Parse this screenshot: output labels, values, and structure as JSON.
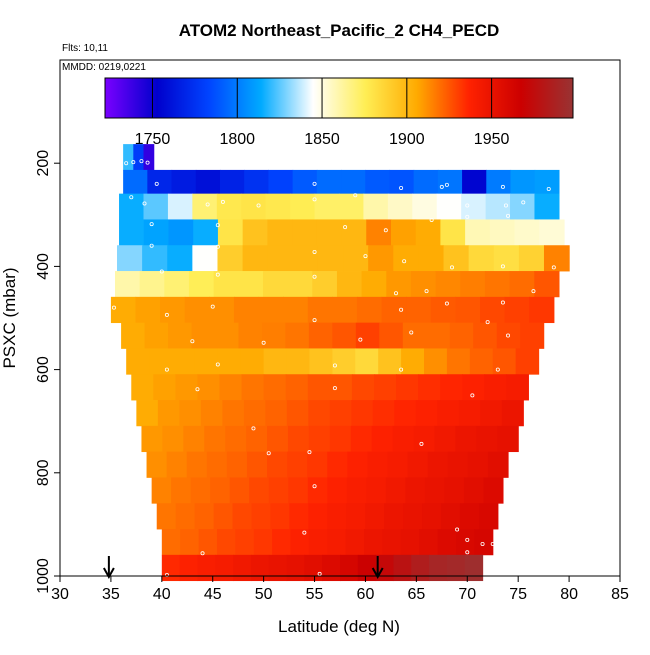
{
  "chart_data": {
    "type": "heatmap",
    "title": "ATOM2 Northeast_Pacific_2 CH4_PECD",
    "flights_label": "Flts: 10,11",
    "dates_label": "MMDD: 0219,0221",
    "xlabel": "Latitude (deg N)",
    "ylabel": "PSXC (mbar)",
    "xlim": [
      30,
      85
    ],
    "ylim": [
      1000,
      0
    ],
    "x_ticks": [
      "30",
      "35",
      "40",
      "45",
      "50",
      "55",
      "60",
      "65",
      "70",
      "75",
      "80",
      "85"
    ],
    "y_ticks": [
      "200",
      "400",
      "600",
      "800",
      "1000"
    ],
    "colorbar": {
      "range": [
        1722,
        1998
      ],
      "ticks": [
        "1750",
        "1800",
        "1850",
        "1900",
        "1950"
      ],
      "colors": [
        "#7a00ff",
        "#0000cc",
        "#0044ff",
        "#00aaff",
        "#ffffff",
        "#ffee55",
        "#ffaa00",
        "#ff2200",
        "#cc0000",
        "#993333"
      ]
    },
    "arrows_at_latitude": [
      34.8,
      61.2
    ],
    "layers": [
      {
        "p": 188,
        "lat_min": 36.2,
        "lat_max": 39.2,
        "ch4": [
          1820,
          1780,
          1740
        ]
      },
      {
        "p": 238,
        "lat_min": 36.2,
        "lat_max": 79.0,
        "ch4": [
          1795,
          1770,
          1765,
          1760,
          1768,
          1775,
          1782,
          1790,
          1795,
          1795,
          1790,
          1788,
          1795,
          1798,
          1755,
          1800,
          1808,
          1810
        ]
      },
      {
        "p": 284,
        "lat_min": 35.8,
        "lat_max": 79.0,
        "ch4": [
          1815,
          1825,
          1840,
          1870,
          1878,
          1880,
          1878,
          1876,
          1872,
          1872,
          1860,
          1855,
          1850,
          1845,
          1840,
          1836,
          1830,
          1815
        ]
      },
      {
        "p": 334,
        "lat_min": 35.8,
        "lat_max": 79.5,
        "ch4": [
          1815,
          1812,
          1808,
          1815,
          1880,
          1895,
          1900,
          1900,
          1900,
          1900,
          1915,
          1908,
          1905,
          1880,
          1858,
          1856,
          1854,
          1852
        ]
      },
      {
        "p": 384,
        "lat_min": 35.6,
        "lat_max": 80.0,
        "ch4": [
          1830,
          1820,
          1815,
          1845,
          1890,
          1900,
          1900,
          1900,
          1900,
          1900,
          1910,
          1905,
          1905,
          1895,
          1885,
          1882,
          1888,
          1915
        ]
      },
      {
        "p": 434,
        "lat_min": 35.4,
        "lat_max": 79.0,
        "ch4": [
          1860,
          1865,
          1870,
          1875,
          1880,
          1880,
          1885,
          1885,
          1890,
          1900,
          1905,
          1910,
          1912,
          1914,
          1916,
          1918,
          1920,
          1925
        ]
      },
      {
        "p": 484,
        "lat_min": 35.0,
        "lat_max": 78.5,
        "ch4": [
          1905,
          1908,
          1910,
          1912,
          1912,
          1915,
          1915,
          1915,
          1918,
          1918,
          1920,
          1922,
          1922,
          1924,
          1925,
          1928,
          1930,
          1932
        ]
      },
      {
        "p": 534,
        "lat_min": 36.0,
        "lat_max": 77.5,
        "ch4": [
          1905,
          1908,
          1910,
          1912,
          1912,
          1915,
          1916,
          1918,
          1922,
          1925,
          1930,
          1925,
          1920,
          1920,
          1922,
          1925,
          1928,
          1930
        ]
      },
      {
        "p": 584,
        "lat_min": 36.5,
        "lat_max": 77.0,
        "ch4": [
          1905,
          1905,
          1905,
          1905,
          1905,
          1905,
          1900,
          1900,
          1895,
          1890,
          1885,
          1895,
          1905,
          1912,
          1918,
          1922,
          1925,
          1930
        ]
      },
      {
        "p": 634,
        "lat_min": 37.0,
        "lat_max": 76.0,
        "ch4": [
          1905,
          1908,
          1910,
          1912,
          1915,
          1918,
          1920,
          1922,
          1925,
          1925,
          1928,
          1930,
          1932,
          1934,
          1936,
          1938,
          1940,
          1942
        ]
      },
      {
        "p": 684,
        "lat_min": 37.5,
        "lat_max": 75.5,
        "ch4": [
          1905,
          1910,
          1912,
          1915,
          1918,
          1920,
          1922,
          1925,
          1928,
          1930,
          1932,
          1934,
          1936,
          1938,
          1940,
          1942,
          1945,
          1948
        ]
      },
      {
        "p": 734,
        "lat_min": 38.0,
        "lat_max": 75.0,
        "ch4": [
          1910,
          1912,
          1915,
          1918,
          1920,
          1922,
          1925,
          1928,
          1930,
          1932,
          1935,
          1938,
          1940,
          1942,
          1945,
          1948,
          1950,
          1952
        ]
      },
      {
        "p": 784,
        "lat_min": 38.5,
        "lat_max": 74.0,
        "ch4": [
          1912,
          1915,
          1918,
          1920,
          1922,
          1925,
          1928,
          1930,
          1932,
          1935,
          1938,
          1940,
          1942,
          1945,
          1948,
          1950,
          1952,
          1955
        ]
      },
      {
        "p": 834,
        "lat_min": 39.0,
        "lat_max": 73.5,
        "ch4": [
          1915,
          1918,
          1920,
          1922,
          1925,
          1928,
          1930,
          1932,
          1935,
          1938,
          1940,
          1942,
          1945,
          1948,
          1950,
          1952,
          1955,
          1958
        ]
      },
      {
        "p": 884,
        "lat_min": 39.5,
        "lat_max": 73.0,
        "ch4": [
          1918,
          1920,
          1922,
          1925,
          1928,
          1930,
          1932,
          1935,
          1938,
          1940,
          1942,
          1945,
          1948,
          1950,
          1952,
          1955,
          1958,
          1960
        ]
      },
      {
        "p": 934,
        "lat_min": 40.0,
        "lat_max": 72.5,
        "ch4": [
          1920,
          1922,
          1925,
          1928,
          1930,
          1932,
          1935,
          1938,
          1940,
          1942,
          1945,
          1948,
          1950,
          1952,
          1955,
          1958,
          1960,
          1962
        ]
      },
      {
        "p": 984,
        "lat_min": 40.0,
        "lat_max": 71.5,
        "ch4": [
          1935,
          1938,
          1940,
          1942,
          1945,
          1948,
          1950,
          1952,
          1955,
          1958,
          1962,
          1968,
          1972,
          1978,
          1985,
          1990,
          1992,
          1995
        ]
      }
    ],
    "sample_points": [
      [
        36.5,
        200
      ],
      [
        37.2,
        198
      ],
      [
        38.0,
        196
      ],
      [
        38.6,
        199
      ],
      [
        39.5,
        240
      ],
      [
        55.0,
        240
      ],
      [
        63.5,
        248
      ],
      [
        67.5,
        246
      ],
      [
        68.0,
        242
      ],
      [
        73.5,
        246
      ],
      [
        78.0,
        250
      ],
      [
        37.0,
        266
      ],
      [
        38.3,
        278
      ],
      [
        44.5,
        280
      ],
      [
        46.0,
        275
      ],
      [
        49.5,
        282
      ],
      [
        55.0,
        270
      ],
      [
        59.0,
        262
      ],
      [
        70.0,
        282
      ],
      [
        73.8,
        282
      ],
      [
        75.5,
        276
      ],
      [
        39.0,
        318
      ],
      [
        45.5,
        320
      ],
      [
        58.0,
        324
      ],
      [
        62.0,
        330
      ],
      [
        66.5,
        310
      ],
      [
        70.0,
        304
      ],
      [
        74.0,
        302
      ],
      [
        39.0,
        360
      ],
      [
        45.5,
        362
      ],
      [
        55.0,
        372
      ],
      [
        60.0,
        380
      ],
      [
        63.8,
        390
      ],
      [
        68.5,
        402
      ],
      [
        73.5,
        400
      ],
      [
        78.5,
        402
      ],
      [
        40.0,
        410
      ],
      [
        45.5,
        416
      ],
      [
        55.0,
        420
      ],
      [
        63.0,
        452
      ],
      [
        66.0,
        448
      ],
      [
        76.5,
        448
      ],
      [
        35.3,
        480
      ],
      [
        40.5,
        494
      ],
      [
        45.0,
        478
      ],
      [
        55.0,
        504
      ],
      [
        63.5,
        484
      ],
      [
        68.0,
        472
      ],
      [
        72.0,
        508
      ],
      [
        73.5,
        470
      ],
      [
        43.0,
        545
      ],
      [
        50.0,
        548
      ],
      [
        59.5,
        542
      ],
      [
        64.5,
        528
      ],
      [
        74.0,
        534
      ],
      [
        40.5,
        600
      ],
      [
        45.5,
        590
      ],
      [
        57.0,
        592
      ],
      [
        63.5,
        600
      ],
      [
        73.0,
        600
      ],
      [
        43.5,
        638
      ],
      [
        57.0,
        636
      ],
      [
        70.5,
        650
      ],
      [
        49.0,
        714
      ],
      [
        65.5,
        744
      ],
      [
        54.5,
        760
      ],
      [
        50.5,
        762
      ],
      [
        55.0,
        826
      ],
      [
        69.0,
        910
      ],
      [
        70.0,
        930
      ],
      [
        70.0,
        954
      ],
      [
        71.5,
        938
      ],
      [
        72.5,
        938
      ],
      [
        54.0,
        916
      ],
      [
        44.0,
        956
      ],
      [
        55.5,
        996
      ],
      [
        40.5,
        998
      ]
    ]
  }
}
